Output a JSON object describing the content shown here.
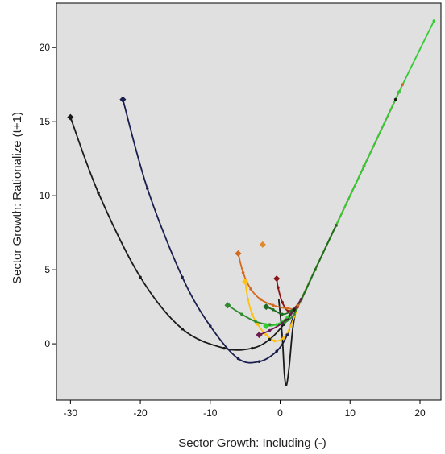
{
  "chart_data": {
    "type": "line",
    "title": "",
    "xlabel": "Sector Growth: Including (-)",
    "ylabel": "Sector Growth: Rationalize (t+1)",
    "xlim": [
      -32,
      23
    ],
    "ylim": [
      -3.8,
      23
    ],
    "xticks": [
      -30,
      -20,
      -10,
      0,
      10,
      20
    ],
    "yticks": [
      0,
      5,
      10,
      15,
      20
    ],
    "grid": false,
    "legend": "none",
    "plot_background": "#e0e0e0",
    "series": [
      {
        "color": "#1a1a1a",
        "marker": "diamond",
        "x": [
          -30,
          -26,
          -20,
          -14,
          -8,
          -4,
          -1.5,
          0.5,
          2,
          3,
          5,
          8,
          12,
          16.5
        ],
        "y": [
          15.3,
          10.2,
          4.5,
          1.0,
          -0.3,
          -0.3,
          0.3,
          1.3,
          2.3,
          3.0,
          5.0,
          8.0,
          12.0,
          16.5
        ]
      },
      {
        "color": "#1a1f4d",
        "marker": "diamond",
        "x": [
          -22.5,
          -19,
          -14,
          -10,
          -6,
          -3,
          -0.5,
          1,
          2,
          3,
          5,
          8,
          12,
          17
        ],
        "y": [
          16.5,
          10.5,
          4.5,
          1.2,
          -1.0,
          -1.2,
          -0.5,
          0.6,
          2.0,
          3.0,
          5.0,
          8.0,
          12.0,
          17.0
        ]
      },
      {
        "color": "#1a1a1a",
        "marker": "none",
        "x": [
          -0.2,
          0.3,
          0.6,
          0.9,
          1.3,
          1.8,
          2.4,
          3,
          5,
          8,
          12
        ],
        "y": [
          3.0,
          0.5,
          -2.0,
          -2.8,
          -1.5,
          1.0,
          2.5,
          3.0,
          5.0,
          8.0,
          12.0
        ]
      },
      {
        "color": "#8a1414",
        "marker": "diamond",
        "x": [
          -0.5,
          -0.3,
          0.3,
          1.2,
          2.5,
          5,
          8,
          12
        ],
        "y": [
          4.4,
          3.8,
          2.8,
          2.2,
          2.5,
          5.0,
          8.0,
          12.0
        ]
      },
      {
        "color": "#d2691e",
        "marker": "diamond",
        "x": [
          -6,
          -5.3,
          -4.2,
          -2.8,
          -1,
          1,
          2.5,
          5,
          8,
          12,
          17.5
        ],
        "y": [
          6.1,
          4.8,
          3.7,
          3.0,
          2.6,
          2.4,
          2.6,
          5.0,
          8.0,
          12.0,
          17.5
        ]
      },
      {
        "color": "#ffc20e",
        "marker": "diamond",
        "x": [
          -5,
          -4.6,
          -4,
          -3.2,
          -2,
          -0.8,
          0.5,
          1.5,
          3,
          5,
          8,
          12
        ],
        "y": [
          4.2,
          3.0,
          2.0,
          1.3,
          0.6,
          0.2,
          0.4,
          1.2,
          3.0,
          5.0,
          8.0,
          12.0
        ]
      },
      {
        "color": "#2e8b2e",
        "marker": "diamond",
        "x": [
          -7.5,
          -5.5,
          -3.5,
          -1.5,
          0.5,
          2,
          3,
          5,
          8,
          12
        ],
        "y": [
          2.6,
          2.0,
          1.5,
          1.3,
          1.4,
          2.0,
          3.0,
          5.0,
          8.0,
          12.0
        ]
      },
      {
        "color": "#32cd32",
        "marker": "diamond",
        "x": [
          -2,
          -0.5,
          1,
          3,
          5,
          8,
          12,
          17,
          22
        ],
        "y": [
          1.2,
          1.3,
          1.8,
          3.0,
          5.0,
          8.0,
          12.0,
          17.0,
          21.8
        ]
      },
      {
        "color": "#1f6b1f",
        "marker": "diamond",
        "x": [
          -2,
          -1,
          0.3,
          1.5,
          3,
          5,
          8
        ],
        "y": [
          2.5,
          2.3,
          2.0,
          2.2,
          3.0,
          5.0,
          8.0
        ]
      },
      {
        "color": "#6a1b4d",
        "marker": "diamond",
        "x": [
          -3,
          -1.5,
          0.3,
          1.5,
          3
        ],
        "y": [
          0.6,
          0.9,
          1.4,
          2.0,
          3.0
        ]
      },
      {
        "color": "#e08a2e",
        "marker": "diamond",
        "x": [
          -2.5
        ],
        "y": [
          6.7
        ]
      }
    ]
  }
}
